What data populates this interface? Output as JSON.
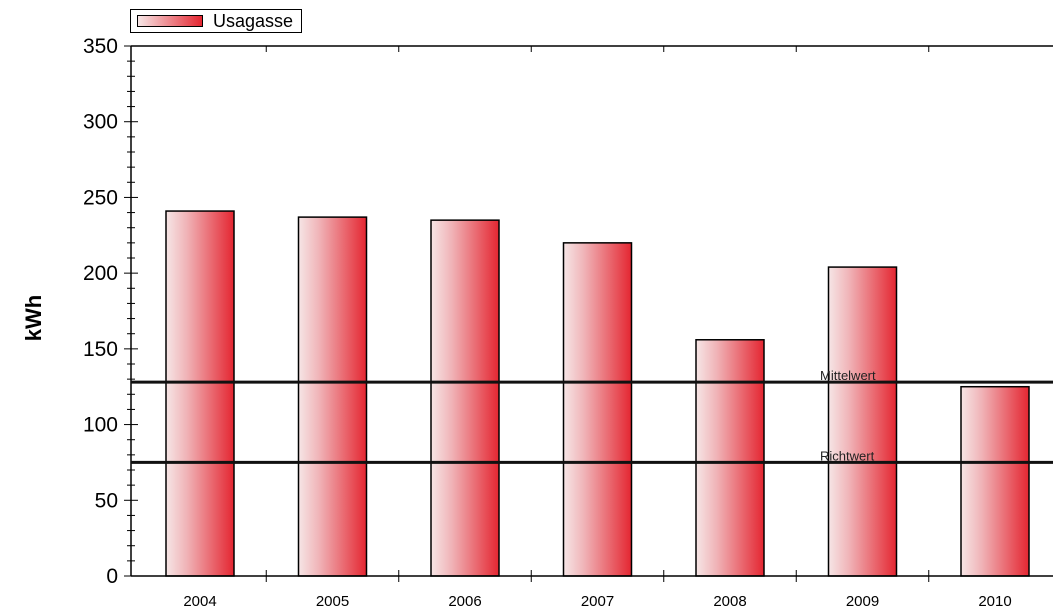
{
  "chart_data": {
    "type": "bar",
    "categories": [
      "2004",
      "2005",
      "2006",
      "2007",
      "2008",
      "2009",
      "2010"
    ],
    "series": [
      {
        "name": "Usagasse",
        "values": [
          241,
          237,
          235,
          220,
          156,
          204,
          125
        ]
      }
    ],
    "ylabel": "kWh",
    "ylim": [
      0,
      350
    ],
    "yticks": [
      0,
      50,
      100,
      150,
      200,
      250,
      300,
      350
    ],
    "reference_lines": [
      {
        "label": "Mittelwert",
        "value": 128
      },
      {
        "label": "Richtwert",
        "value": 75
      }
    ],
    "legend_position": "top-left",
    "grid": false,
    "colors": {
      "bar_light": "#f6e6e6",
      "bar_dark": "#e42631",
      "line": "#111111"
    }
  }
}
